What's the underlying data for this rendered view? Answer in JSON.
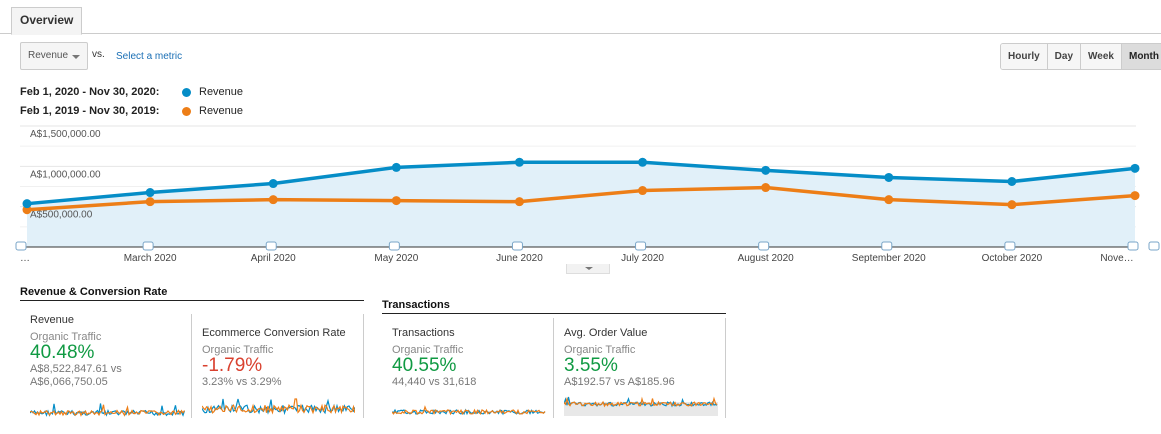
{
  "tabs": [
    {
      "label": "Overview",
      "active": true
    }
  ],
  "metric_selector": {
    "value": "Revenue",
    "vs_label": "vs.",
    "select_metric_link": "Select a metric"
  },
  "period_buttons": [
    {
      "label": "Hourly",
      "active": false
    },
    {
      "label": "Day",
      "active": false
    },
    {
      "label": "Week",
      "active": false
    },
    {
      "label": "Month",
      "active": true
    }
  ],
  "legend": [
    {
      "range": "Feb 1, 2020 - Nov 30, 2020:",
      "label": "Revenue",
      "color": "#058dc7"
    },
    {
      "range": "Feb 1, 2019 - Nov 30, 2019:",
      "label": "Revenue",
      "color": "#ed7e17"
    }
  ],
  "chart_data": {
    "type": "line",
    "title": "",
    "xlabel": "",
    "ylabel": "Revenue",
    "x": [
      "…",
      "March 2020",
      "April 2020",
      "May 2020",
      "June 2020",
      "July 2020",
      "August 2020",
      "September 2020",
      "October 2020",
      "Nove…"
    ],
    "y_ticks": [
      "A$500,000.00",
      "A$1,000,000.00",
      "A$1,500,000.00"
    ],
    "y_tick_values": [
      500000,
      1000000,
      1500000
    ],
    "ylim": [
      0,
      1500000
    ],
    "grid": true,
    "series": [
      {
        "name": "Feb 1, 2020 - Nov 30, 2020: Revenue",
        "color": "#058dc7",
        "area": true,
        "values": [
          537000,
          675000,
          787000,
          987000,
          1050000,
          1050000,
          950000,
          862000,
          812000,
          975000
        ]
      },
      {
        "name": "Feb 1, 2019 - Nov 30, 2019: Revenue",
        "color": "#ed7e17",
        "area": false,
        "values": [
          462000,
          562000,
          587000,
          575000,
          562000,
          700000,
          737000,
          587000,
          525000,
          637000
        ]
      }
    ]
  },
  "sections": [
    {
      "title": "Revenue & Conversion Rate",
      "cards": [
        {
          "name": "Revenue",
          "segment": "Organic Traffic",
          "change": "40.48%",
          "direction": "up",
          "comparison": [
            "A$8,522,847.61 vs",
            "A$6,066,750.05"
          ]
        },
        {
          "name": "Ecommerce Conversion Rate",
          "segment": "Organic Traffic",
          "change": "-1.79%",
          "direction": "down",
          "comparison": [
            "3.23% vs 3.29%"
          ]
        }
      ]
    },
    {
      "title": "Transactions",
      "cards": [
        {
          "name": "Transactions",
          "segment": "Organic Traffic",
          "change": "40.55%",
          "direction": "up",
          "comparison": [
            "44,440 vs 31,618"
          ]
        },
        {
          "name": "Avg. Order Value",
          "segment": "Organic Traffic",
          "change": "3.55%",
          "direction": "up",
          "comparison": [
            "A$192.57 vs A$185.96"
          ]
        }
      ]
    }
  ]
}
